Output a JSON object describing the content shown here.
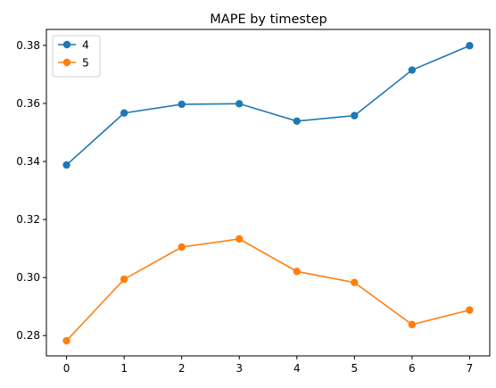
{
  "chart_data": {
    "type": "line",
    "title": "MAPE by timestep",
    "xlabel": "",
    "ylabel": "",
    "x": [
      0,
      1,
      2,
      3,
      4,
      5,
      6,
      7
    ],
    "xlim": [
      -0.35,
      7.35
    ],
    "ylim": [
      0.273,
      0.3855
    ],
    "xticks": [
      0,
      1,
      2,
      3,
      4,
      5,
      6,
      7
    ],
    "yticks": [
      0.28,
      0.3,
      0.32,
      0.34,
      0.36,
      0.38
    ],
    "ytick_labels": [
      "0.28",
      "0.30",
      "0.32",
      "0.34",
      "0.36",
      "0.38"
    ],
    "grid": false,
    "legend_position": "upper-left",
    "series": [
      {
        "name": "4",
        "color": "#1f77b4",
        "marker": "circle",
        "values": [
          0.3388,
          0.3567,
          0.3597,
          0.3599,
          0.3539,
          0.3558,
          0.3715,
          0.3799
        ]
      },
      {
        "name": "5",
        "color": "#ff7f0e",
        "marker": "circle",
        "values": [
          0.2782,
          0.2994,
          0.3105,
          0.3133,
          0.3021,
          0.2983,
          0.2838,
          0.2888
        ]
      }
    ]
  }
}
